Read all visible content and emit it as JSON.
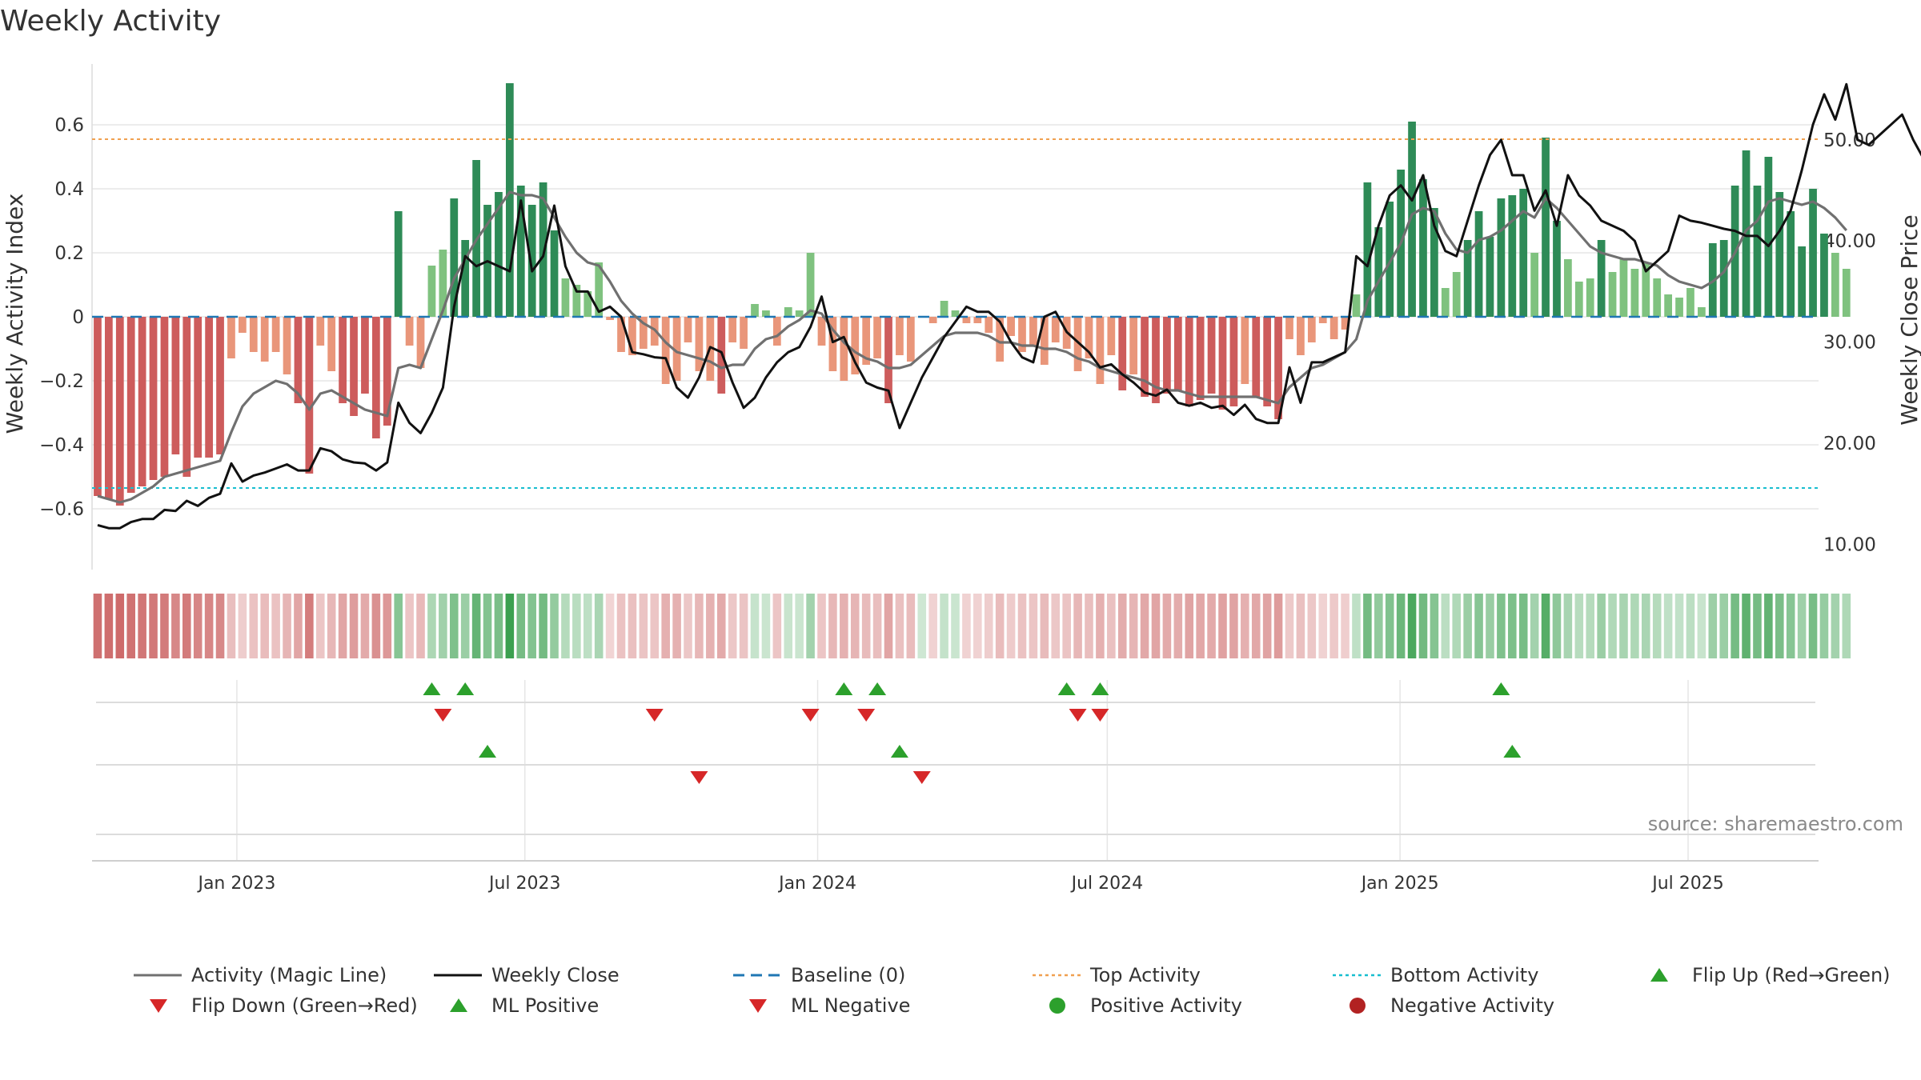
{
  "chart_data": {
    "type": "bar",
    "title": "Weekly Activity",
    "ylabel": "Weekly Activity Index",
    "y2label": "Weekly Close Price",
    "ylim": [
      -0.79,
      0.79
    ],
    "y2lim": [
      7.5,
      57.5
    ],
    "yticks": [
      0.6,
      0.4,
      0.2,
      0,
      -0.2,
      -0.4,
      -0.6
    ],
    "yticklabels": [
      "0.6",
      "0.4",
      "0.2",
      "0",
      "−0.2",
      "−0.4",
      "−0.6"
    ],
    "y2ticks": [
      50,
      40,
      30,
      20,
      10
    ],
    "y2ticklabels": [
      "50.00",
      "40.00",
      "30.00",
      "20.00",
      "10.00"
    ],
    "xlim": [
      "2022-10-02",
      "2025-09-21"
    ],
    "xticks": [
      {
        "date": "2023-01-01",
        "label": "Jan 2023"
      },
      {
        "date": "2023-07-01",
        "label": "Jul 2023"
      },
      {
        "date": "2024-01-01",
        "label": "Jan 2024"
      },
      {
        "date": "2024-07-01",
        "label": "Jul 2024"
      },
      {
        "date": "2025-01-01",
        "label": "Jan 2025"
      },
      {
        "date": "2025-07-01",
        "label": "Jul 2025"
      }
    ],
    "first_week": "2022-10-02",
    "week_days": 7,
    "top_activity": 0.555,
    "bottom_activity": -0.535,
    "baseline": 0,
    "activity": [
      -0.56,
      -0.57,
      -0.59,
      -0.55,
      -0.53,
      -0.51,
      -0.5,
      -0.43,
      -0.5,
      -0.44,
      -0.44,
      -0.43,
      -0.13,
      -0.05,
      -0.11,
      -0.14,
      -0.11,
      -0.18,
      -0.27,
      -0.49,
      -0.09,
      -0.17,
      -0.27,
      -0.31,
      -0.24,
      -0.38,
      -0.34,
      0.33,
      -0.09,
      -0.16,
      0.16,
      0.21,
      0.37,
      0.24,
      0.49,
      0.35,
      0.39,
      0.73,
      0.41,
      0.35,
      0.42,
      0.27,
      0.12,
      0.1,
      0.08,
      0.17,
      -0.01,
      -0.11,
      -0.12,
      -0.1,
      -0.09,
      -0.21,
      -0.2,
      -0.08,
      -0.17,
      -0.2,
      -0.24,
      -0.08,
      -0.1,
      0.04,
      0.02,
      -0.09,
      0.03,
      0.02,
      0.2,
      -0.09,
      -0.17,
      -0.2,
      -0.18,
      -0.15,
      -0.13,
      -0.27,
      -0.12,
      -0.14,
      0.0,
      -0.02,
      0.05,
      0.02,
      -0.02,
      -0.02,
      -0.05,
      -0.14,
      -0.06,
      -0.11,
      -0.09,
      -0.15,
      -0.08,
      -0.1,
      -0.17,
      -0.13,
      -0.21,
      -0.12,
      -0.23,
      -0.18,
      -0.25,
      -0.27,
      -0.24,
      -0.23,
      -0.28,
      -0.26,
      -0.24,
      -0.29,
      -0.28,
      -0.21,
      -0.25,
      -0.28,
      -0.32,
      -0.07,
      -0.12,
      -0.08,
      -0.02,
      -0.07,
      -0.04,
      0.07,
      0.42,
      0.28,
      0.36,
      0.46,
      0.61,
      0.43,
      0.34,
      0.09,
      0.14,
      0.24,
      0.33,
      0.25,
      0.37,
      0.38,
      0.4,
      0.2,
      0.56,
      0.3,
      0.18,
      0.11,
      0.12,
      0.24,
      0.14,
      0.18,
      0.15,
      0.17,
      0.12,
      0.07,
      0.06,
      0.09,
      0.03,
      0.23,
      0.24,
      0.41,
      0.52,
      0.41,
      0.5,
      0.39,
      0.33,
      0.22,
      0.4,
      0.26,
      0.2,
      0.15
    ],
    "magic_line": [
      -0.56,
      -0.57,
      -0.58,
      -0.57,
      -0.55,
      -0.53,
      -0.5,
      -0.49,
      -0.48,
      -0.47,
      -0.46,
      -0.45,
      -0.36,
      -0.28,
      -0.24,
      -0.22,
      -0.2,
      -0.21,
      -0.24,
      -0.29,
      -0.24,
      -0.23,
      -0.25,
      -0.27,
      -0.29,
      -0.3,
      -0.31,
      -0.16,
      -0.15,
      -0.16,
      -0.07,
      0.02,
      0.12,
      0.18,
      0.24,
      0.29,
      0.34,
      0.39,
      0.38,
      0.38,
      0.37,
      0.31,
      0.25,
      0.2,
      0.17,
      0.16,
      0.11,
      0.05,
      0.01,
      -0.02,
      -0.04,
      -0.08,
      -0.11,
      -0.12,
      -0.13,
      -0.14,
      -0.16,
      -0.15,
      -0.15,
      -0.1,
      -0.07,
      -0.06,
      -0.03,
      -0.01,
      0.02,
      0.01,
      -0.04,
      -0.08,
      -0.11,
      -0.13,
      -0.14,
      -0.16,
      -0.16,
      -0.15,
      -0.12,
      -0.09,
      -0.06,
      -0.05,
      -0.05,
      -0.05,
      -0.06,
      -0.08,
      -0.08,
      -0.09,
      -0.09,
      -0.1,
      -0.1,
      -0.11,
      -0.13,
      -0.14,
      -0.16,
      -0.17,
      -0.18,
      -0.19,
      -0.2,
      -0.22,
      -0.23,
      -0.23,
      -0.24,
      -0.25,
      -0.25,
      -0.25,
      -0.25,
      -0.25,
      -0.25,
      -0.26,
      -0.27,
      -0.22,
      -0.19,
      -0.16,
      -0.15,
      -0.13,
      -0.11,
      -0.07,
      0.05,
      0.11,
      0.17,
      0.23,
      0.32,
      0.34,
      0.33,
      0.26,
      0.21,
      0.2,
      0.24,
      0.25,
      0.27,
      0.3,
      0.33,
      0.31,
      0.37,
      0.34,
      0.3,
      0.26,
      0.22,
      0.2,
      0.19,
      0.18,
      0.18,
      0.17,
      0.16,
      0.13,
      0.11,
      0.1,
      0.09,
      0.11,
      0.14,
      0.2,
      0.27,
      0.3,
      0.36,
      0.37,
      0.36,
      0.35,
      0.36,
      0.34,
      0.31,
      0.27
    ],
    "close": [
      11.9,
      11.6,
      11.6,
      12.2,
      12.5,
      12.5,
      13.4,
      13.3,
      14.3,
      13.8,
      14.6,
      15.0,
      18.0,
      16.2,
      16.8,
      17.1,
      17.5,
      17.9,
      17.3,
      17.3,
      19.5,
      19.2,
      18.4,
      18.1,
      18.0,
      17.3,
      18.1,
      24.0,
      22.0,
      21.0,
      23.0,
      25.5,
      33.5,
      38.5,
      37.5,
      38.0,
      37.5,
      37.0,
      44.0,
      37.0,
      38.5,
      43.5,
      37.5,
      35.0,
      35.0,
      33.0,
      33.5,
      32.5,
      29.0,
      28.8,
      28.5,
      28.4,
      25.5,
      24.5,
      26.5,
      29.5,
      29.0,
      26.0,
      23.5,
      24.5,
      26.5,
      28.0,
      29.0,
      29.5,
      31.5,
      34.5,
      30.0,
      30.5,
      28.0,
      26.0,
      25.5,
      25.2,
      21.5,
      24.0,
      26.5,
      28.5,
      30.5,
      32.0,
      33.5,
      33.0,
      33.0,
      32.0,
      30.0,
      28.5,
      28.0,
      32.5,
      33.0,
      31.0,
      30.0,
      29.0,
      27.5,
      27.8,
      26.8,
      26.0,
      25.0,
      24.7,
      25.3,
      24.0,
      23.7,
      24.0,
      23.5,
      23.7,
      22.8,
      23.8,
      22.4,
      22.0,
      22.0,
      27.5,
      24.0,
      28.0,
      28.0,
      28.5,
      29.0,
      38.5,
      37.5,
      41.5,
      44.5,
      45.5,
      44.0,
      46.5,
      41.5,
      39.0,
      38.5,
      42.0,
      45.5,
      48.5,
      50.0,
      46.5,
      46.5,
      43.0,
      45.0,
      41.5,
      46.5,
      44.5,
      43.5,
      42.0,
      41.5,
      41.0,
      40.0,
      37.0,
      38.0,
      39.0,
      42.5,
      42.0,
      41.8,
      41.5,
      41.2,
      41.0,
      40.5,
      40.5,
      39.5,
      41.0,
      43.0,
      47.0,
      51.5,
      54.5,
      52.0,
      55.5,
      50.0,
      49.5,
      50.5,
      51.5,
      52.5,
      50.0,
      48.0
    ],
    "ml_rows": [
      {
        "name": "row-1",
        "up_weeks": [
          30,
          33,
          67,
          70,
          87,
          90,
          126
        ],
        "down_weeks": [
          31,
          50,
          64,
          69,
          88,
          90
        ]
      },
      {
        "name": "row-2",
        "up_weeks": [
          35,
          72,
          127
        ],
        "down_weeks": [
          54,
          74
        ]
      },
      {
        "name": "row-3",
        "up_weeks": [],
        "down_weeks": []
      }
    ],
    "legend": [
      {
        "label": "Activity (Magic Line)",
        "type": "line",
        "color": "#707070"
      },
      {
        "label": "Weekly Close",
        "type": "line",
        "color": "#111111"
      },
      {
        "label": "Baseline (0)",
        "type": "dashed",
        "color": "#1f77b4"
      },
      {
        "label": "Top Activity",
        "type": "dotted",
        "color": "#f0a050"
      },
      {
        "label": "Bottom Activity",
        "type": "dotted",
        "color": "#17becf"
      },
      {
        "label": "Flip Up (Red→Green)",
        "type": "tri-up",
        "color": "#2ca02c"
      },
      {
        "label": "Flip Down (Green→Red)",
        "type": "tri-down",
        "color": "#d62728"
      },
      {
        "label": "ML Positive",
        "type": "tri-up",
        "color": "#2ca02c"
      },
      {
        "label": "ML Negative",
        "type": "tri-down",
        "color": "#d62728"
      },
      {
        "label": "Positive Activity",
        "type": "dot",
        "color": "#2ca02c"
      },
      {
        "label": "Negative Activity",
        "type": "dot",
        "color": "#b22222"
      }
    ],
    "colors": {
      "green_strong": "#2e8b57",
      "green_light": "#7fc27f",
      "red_strong": "#cd5c5c",
      "red_light": "#e9967a",
      "magic_line": "#707070",
      "close_line": "#111111",
      "baseline": "#1f77b4",
      "top": "#f0a050",
      "bottom": "#17becf",
      "grid": "#e6e6e6",
      "tri_green": "#2ca02c",
      "tri_red": "#d62728"
    }
  },
  "source_text": "source: sharemaestro.com"
}
